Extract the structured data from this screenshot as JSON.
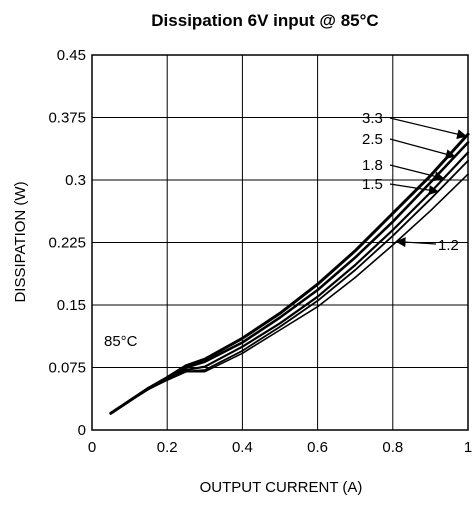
{
  "chart_data": {
    "type": "line",
    "title": "Dissipation 6V input @ 85°C",
    "xlabel": "OUTPUT CURRENT (A)",
    "ylabel": "DISSIPATION (W)",
    "xlim": [
      0,
      1
    ],
    "ylim": [
      0,
      0.45
    ],
    "x_ticks": [
      0,
      0.2,
      0.4,
      0.6,
      0.8,
      1
    ],
    "x_tick_labels": [
      "0",
      "0.2",
      "0.4",
      "0.6",
      "0.8",
      "1"
    ],
    "y_ticks": [
      0,
      0.075,
      0.15,
      0.225,
      0.3,
      0.375,
      0.45
    ],
    "y_tick_labels": [
      "0",
      "0.075",
      "0.15",
      "0.225",
      "0.3",
      "0.375",
      "0.45"
    ],
    "grid": true,
    "annotation": "85°C",
    "series": [
      {
        "name": "3.3",
        "x": [
          0.05,
          0.1,
          0.15,
          0.2,
          0.25,
          0.3,
          0.4,
          0.5,
          0.6,
          0.7,
          0.8,
          0.9,
          1.0
        ],
        "y": [
          0.02,
          0.035,
          0.05,
          0.063,
          0.077,
          0.085,
          0.11,
          0.14,
          0.175,
          0.215,
          0.26,
          0.305,
          0.355
        ]
      },
      {
        "name": "2.5",
        "x": [
          0.05,
          0.1,
          0.15,
          0.2,
          0.25,
          0.3,
          0.4,
          0.5,
          0.6,
          0.7,
          0.8,
          0.9,
          1.0
        ],
        "y": [
          0.02,
          0.035,
          0.05,
          0.062,
          0.075,
          0.082,
          0.105,
          0.135,
          0.168,
          0.207,
          0.25,
          0.297,
          0.345
        ]
      },
      {
        "name": "1.8",
        "x": [
          0.05,
          0.1,
          0.15,
          0.2,
          0.25,
          0.3,
          0.4,
          0.5,
          0.6,
          0.7,
          0.8,
          0.9,
          1.0
        ],
        "y": [
          0.02,
          0.035,
          0.049,
          0.061,
          0.072,
          0.076,
          0.1,
          0.128,
          0.16,
          0.198,
          0.24,
          0.285,
          0.333
        ]
      },
      {
        "name": "1.5",
        "x": [
          0.05,
          0.1,
          0.15,
          0.2,
          0.25,
          0.3,
          0.4,
          0.5,
          0.6,
          0.7,
          0.8,
          0.9,
          1.0
        ],
        "y": [
          0.02,
          0.035,
          0.049,
          0.06,
          0.07,
          0.072,
          0.095,
          0.124,
          0.155,
          0.192,
          0.233,
          0.277,
          0.323
        ]
      },
      {
        "name": "1.2",
        "x": [
          0.05,
          0.1,
          0.15,
          0.2,
          0.25,
          0.3,
          0.4,
          0.5,
          0.6,
          0.7,
          0.8,
          0.9,
          1.0
        ],
        "y": [
          0.02,
          0.035,
          0.049,
          0.06,
          0.07,
          0.07,
          0.092,
          0.12,
          0.148,
          0.183,
          0.222,
          0.263,
          0.307
        ]
      }
    ],
    "label_text": {
      "s33": "3.3",
      "s25": "2.5",
      "s18": "1.8",
      "s15": "1.5",
      "s12": "1.2"
    },
    "colors": {
      "line": "#000000",
      "grid": "#000000",
      "background": "#ffffff"
    }
  }
}
